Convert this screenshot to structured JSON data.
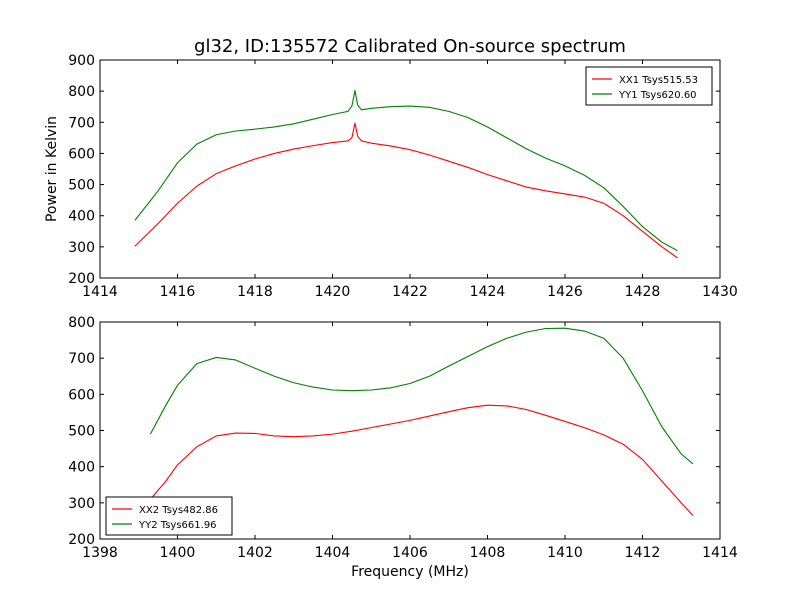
{
  "figure": {
    "title": "gl32, ID:135572 Calibrated On-source spectrum"
  },
  "chart_data": [
    {
      "type": "line",
      "title": "gl32, ID:135572 Calibrated On-source spectrum",
      "xlabel": "",
      "ylabel": "Power in Kelvin",
      "xlim": [
        1414,
        1430
      ],
      "ylim": [
        200,
        900
      ],
      "xticks": [
        1414,
        1416,
        1418,
        1420,
        1422,
        1424,
        1426,
        1428,
        1430
      ],
      "yticks": [
        200,
        300,
        400,
        500,
        600,
        700,
        800,
        900
      ],
      "legend_position": "top-right",
      "series": [
        {
          "name": "XX1 Tsys515.53",
          "color": "#ff0000",
          "x": [
            1414.9,
            1415.5,
            1416.0,
            1416.5,
            1417.0,
            1417.5,
            1418.0,
            1418.5,
            1419.0,
            1419.5,
            1420.0,
            1420.4,
            1420.5,
            1420.58,
            1420.65,
            1420.75,
            1421.0,
            1421.5,
            1422.0,
            1422.5,
            1423.0,
            1423.5,
            1424.0,
            1424.5,
            1425.0,
            1425.5,
            1426.0,
            1426.5,
            1427.0,
            1427.5,
            1428.0,
            1428.5,
            1428.9
          ],
          "y": [
            302,
            375,
            440,
            495,
            535,
            560,
            582,
            600,
            614,
            625,
            635,
            640,
            650,
            697,
            655,
            640,
            633,
            624,
            612,
            595,
            575,
            555,
            532,
            512,
            492,
            480,
            470,
            460,
            440,
            400,
            350,
            300,
            265
          ]
        },
        {
          "name": "YY1 Tsys620.60",
          "color": "#008000",
          "x": [
            1414.9,
            1415.5,
            1416.0,
            1416.5,
            1417.0,
            1417.5,
            1418.0,
            1418.5,
            1419.0,
            1419.5,
            1420.0,
            1420.4,
            1420.5,
            1420.58,
            1420.65,
            1420.75,
            1421.0,
            1421.5,
            1422.0,
            1422.5,
            1423.0,
            1423.5,
            1424.0,
            1424.5,
            1425.0,
            1425.5,
            1426.0,
            1426.5,
            1427.0,
            1427.5,
            1428.0,
            1428.5,
            1428.9
          ],
          "y": [
            385,
            480,
            570,
            630,
            660,
            672,
            678,
            685,
            695,
            710,
            725,
            735,
            752,
            802,
            755,
            740,
            745,
            750,
            752,
            748,
            735,
            715,
            685,
            650,
            615,
            585,
            560,
            530,
            490,
            430,
            365,
            315,
            288
          ]
        }
      ]
    },
    {
      "type": "line",
      "title": "",
      "xlabel": "Frequency (MHz)",
      "ylabel": "",
      "xlim": [
        1398,
        1414
      ],
      "ylim": [
        200,
        800
      ],
      "xticks": [
        1398,
        1400,
        1402,
        1404,
        1406,
        1408,
        1410,
        1412,
        1414
      ],
      "yticks": [
        200,
        300,
        400,
        500,
        600,
        700,
        800
      ],
      "legend_position": "bottom-left",
      "series": [
        {
          "name": "XX2 Tsys482.86",
          "color": "#ff0000",
          "x": [
            1399.3,
            1399.7,
            1400.0,
            1400.5,
            1401.0,
            1401.5,
            1402.0,
            1402.5,
            1403.0,
            1403.5,
            1404.0,
            1404.5,
            1405.0,
            1405.5,
            1406.0,
            1406.5,
            1407.0,
            1407.5,
            1408.0,
            1408.5,
            1409.0,
            1409.5,
            1410.0,
            1410.5,
            1411.0,
            1411.5,
            1412.0,
            1412.5,
            1413.0,
            1413.3
          ],
          "y": [
            310,
            360,
            405,
            455,
            485,
            493,
            492,
            485,
            483,
            485,
            490,
            498,
            508,
            518,
            528,
            540,
            552,
            563,
            570,
            568,
            558,
            542,
            525,
            508,
            488,
            462,
            420,
            360,
            300,
            265
          ]
        },
        {
          "name": "YY2 Tsys661.96",
          "color": "#008000",
          "x": [
            1399.3,
            1399.7,
            1400.0,
            1400.5,
            1401.0,
            1401.5,
            1402.0,
            1402.5,
            1403.0,
            1403.5,
            1404.0,
            1404.5,
            1405.0,
            1405.5,
            1406.0,
            1406.5,
            1407.0,
            1407.5,
            1408.0,
            1408.5,
            1409.0,
            1409.5,
            1410.0,
            1410.5,
            1411.0,
            1411.5,
            1412.0,
            1412.5,
            1413.0,
            1413.3
          ],
          "y": [
            490,
            570,
            625,
            685,
            702,
            695,
            672,
            650,
            632,
            620,
            612,
            610,
            612,
            618,
            630,
            650,
            678,
            705,
            732,
            755,
            772,
            782,
            783,
            775,
            755,
            700,
            610,
            510,
            435,
            408
          ]
        }
      ]
    }
  ]
}
